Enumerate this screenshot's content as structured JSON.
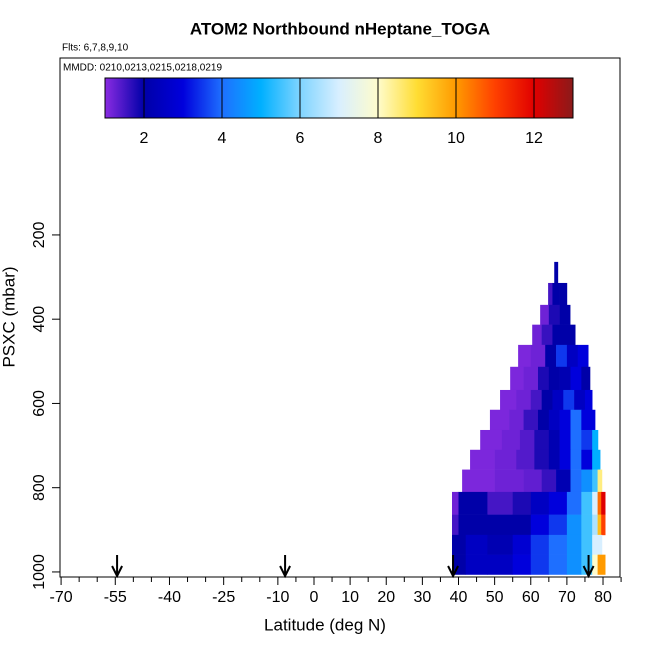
{
  "chart_data": {
    "type": "curtain",
    "title": "ATOM2 Northbound nHeptane_TOGA",
    "subtitle": "Flts: 6,7,8,9,10",
    "annotation": "MMDD: 0210,0213,0215,0218,0219",
    "x_label": "Latitude (deg N)",
    "y_label": "PSXC (mbar)",
    "xlim": [
      -70.3,
      84.7
    ],
    "xticks": [
      -70,
      -55,
      -40,
      -25,
      -10,
      0,
      10,
      20,
      30,
      40,
      50,
      60,
      70,
      80
    ],
    "xticks_minor": [
      -65,
      -60,
      -50,
      -45,
      -35,
      -30,
      -20,
      -15,
      -5,
      5,
      15,
      25,
      35,
      45,
      55,
      65,
      75,
      85
    ],
    "ylim": [
      -220,
      1012
    ],
    "yticks": [
      200,
      400,
      600,
      800,
      1000
    ],
    "colorbar": {
      "range": [
        1,
        13
      ],
      "ticks": [
        2,
        4,
        6,
        8,
        10,
        12
      ],
      "stops": [
        1,
        2,
        3,
        4,
        5,
        6,
        7,
        8,
        9,
        10,
        11,
        12,
        13
      ],
      "colors": [
        "#8a2be2",
        "#0000a8",
        "#0000dc",
        "#1e6fff",
        "#00b0ff",
        "#7fd4ff",
        "#d8efff",
        "#fffccc",
        "#ffdd33",
        "#ff9a00",
        "#ff4000",
        "#e00000",
        "#8b1a1a"
      ]
    },
    "flight_arrows_lat": [
      -54.5,
      -8,
      38.5,
      76
    ],
    "rows": [
      {
        "p": [
          264,
          314
        ],
        "lat": [
          66.5,
          67.5
        ],
        "values": [
          2
        ]
      },
      {
        "p": [
          314,
          366
        ],
        "lat": [
          64.8,
          66,
          68,
          70.0
        ],
        "values": [
          1.5,
          2,
          2
        ]
      },
      {
        "p": [
          366,
          413
        ],
        "lat": [
          62.6,
          65,
          68,
          70.9
        ],
        "values": [
          1.2,
          1.8,
          2
        ]
      },
      {
        "p": [
          413,
          461
        ],
        "lat": [
          60.4,
          63,
          66,
          69,
          72.3
        ],
        "values": [
          1.2,
          1.6,
          2,
          2
        ]
      },
      {
        "p": [
          461,
          513
        ],
        "lat": [
          56.5,
          60,
          64,
          67,
          70,
          73,
          75.9
        ],
        "values": [
          1.1,
          1.2,
          2,
          3.5,
          2.5,
          3
        ]
      },
      {
        "p": [
          513,
          568
        ],
        "lat": [
          54.3,
          58,
          62,
          65,
          68,
          71,
          74,
          76.4
        ],
        "values": [
          1.1,
          1.2,
          1.8,
          2,
          2.2,
          3,
          2
        ]
      },
      {
        "p": [
          568,
          615
        ],
        "lat": [
          51.5,
          56,
          60,
          63,
          66,
          69,
          72,
          75,
          77.0
        ],
        "values": [
          1.1,
          1.2,
          1.5,
          2,
          2.5,
          3.5,
          2.5,
          3
        ]
      },
      {
        "p": [
          615,
          663
        ],
        "lat": [
          48.7,
          54,
          58,
          62,
          65,
          68,
          71,
          74,
          77.8
        ],
        "values": [
          1.1,
          1.2,
          1.6,
          2,
          2.5,
          3,
          4,
          3
        ]
      },
      {
        "p": [
          663,
          710
        ],
        "lat": [
          46.0,
          52,
          57,
          61,
          65,
          68,
          71,
          74,
          77,
          78.6
        ],
        "values": [
          1.1,
          1.2,
          1.4,
          1.8,
          2.2,
          3,
          4,
          3.5,
          5
        ]
      },
      {
        "p": [
          710,
          757
        ],
        "lat": [
          43.2,
          50,
          56,
          61,
          65,
          68,
          71,
          74,
          77,
          79.2
        ],
        "values": [
          1.1,
          1.2,
          1.4,
          1.8,
          2.2,
          3,
          4,
          3,
          5
        ]
      },
      {
        "p": [
          757,
          810
        ],
        "lat": [
          41.0,
          50,
          58,
          63,
          67,
          71,
          74,
          77,
          78.5,
          79.7
        ],
        "values": [
          1.1,
          1.2,
          1.3,
          1.6,
          2.2,
          4,
          4.5,
          5.5,
          8.5
        ]
      },
      {
        "p": [
          810,
          864
        ],
        "lat": [
          38.2,
          40,
          48,
          55,
          60,
          65,
          70,
          74,
          77,
          78.5,
          79.5,
          80.6
        ],
        "values": [
          1.2,
          2,
          1.5,
          1.8,
          2.5,
          3,
          4,
          5.5,
          7,
          10.5,
          12
        ]
      },
      {
        "p": [
          864,
          912
        ],
        "lat": [
          38.2,
          40,
          48,
          55,
          60,
          65,
          70,
          74,
          77,
          78.5,
          79.5,
          80.6
        ],
        "values": [
          1.5,
          2,
          2,
          2,
          3,
          3.5,
          4.5,
          5.5,
          6.5,
          9.5,
          11
        ]
      },
      {
        "p": [
          912,
          959
        ],
        "lat": [
          38.2,
          42,
          48,
          55,
          60,
          65,
          70,
          74,
          77,
          79.7
        ],
        "values": [
          2,
          2.5,
          2.2,
          2.8,
          3.5,
          4,
          4.5,
          5.5,
          7
        ]
      },
      {
        "p": [
          959,
          1006
        ],
        "lat": [
          38.2,
          42,
          48,
          55,
          60,
          65,
          70,
          74,
          77,
          78.5,
          80.6
        ],
        "values": [
          2,
          2.5,
          2.5,
          3,
          3.5,
          4,
          4.5,
          5.5,
          8,
          10
        ]
      }
    ]
  }
}
